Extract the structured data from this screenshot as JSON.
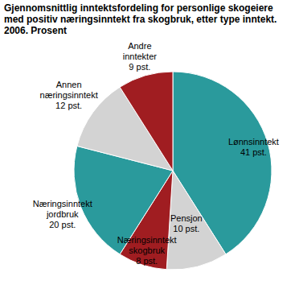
{
  "chart_data": {
    "type": "pie",
    "title": "Gjennomsnittlig inntektsfordeling for personlige skogeiere med positiv næringsinntekt fra skogbruk, etter type inntekt. 2006. Prosent",
    "categories": [
      "Lønnsinntekt",
      "Pensjon",
      "Næringsinntekt skogbruk",
      "Næringsinntekt jordbruk",
      "Annen næringsinntekt",
      "Andre inntekter"
    ],
    "values": [
      41,
      10,
      8,
      20,
      12,
      9
    ],
    "value_labels": [
      "41 pst.",
      "10 pst.",
      "8 pst.",
      "20 pst.",
      "12 pst.",
      "9 pst."
    ],
    "colors": [
      "#2a9a9c",
      "#d3d3d3",
      "#a01d21",
      "#2a9a9c",
      "#d3d3d3",
      "#a01d21"
    ],
    "data_labels": true
  }
}
